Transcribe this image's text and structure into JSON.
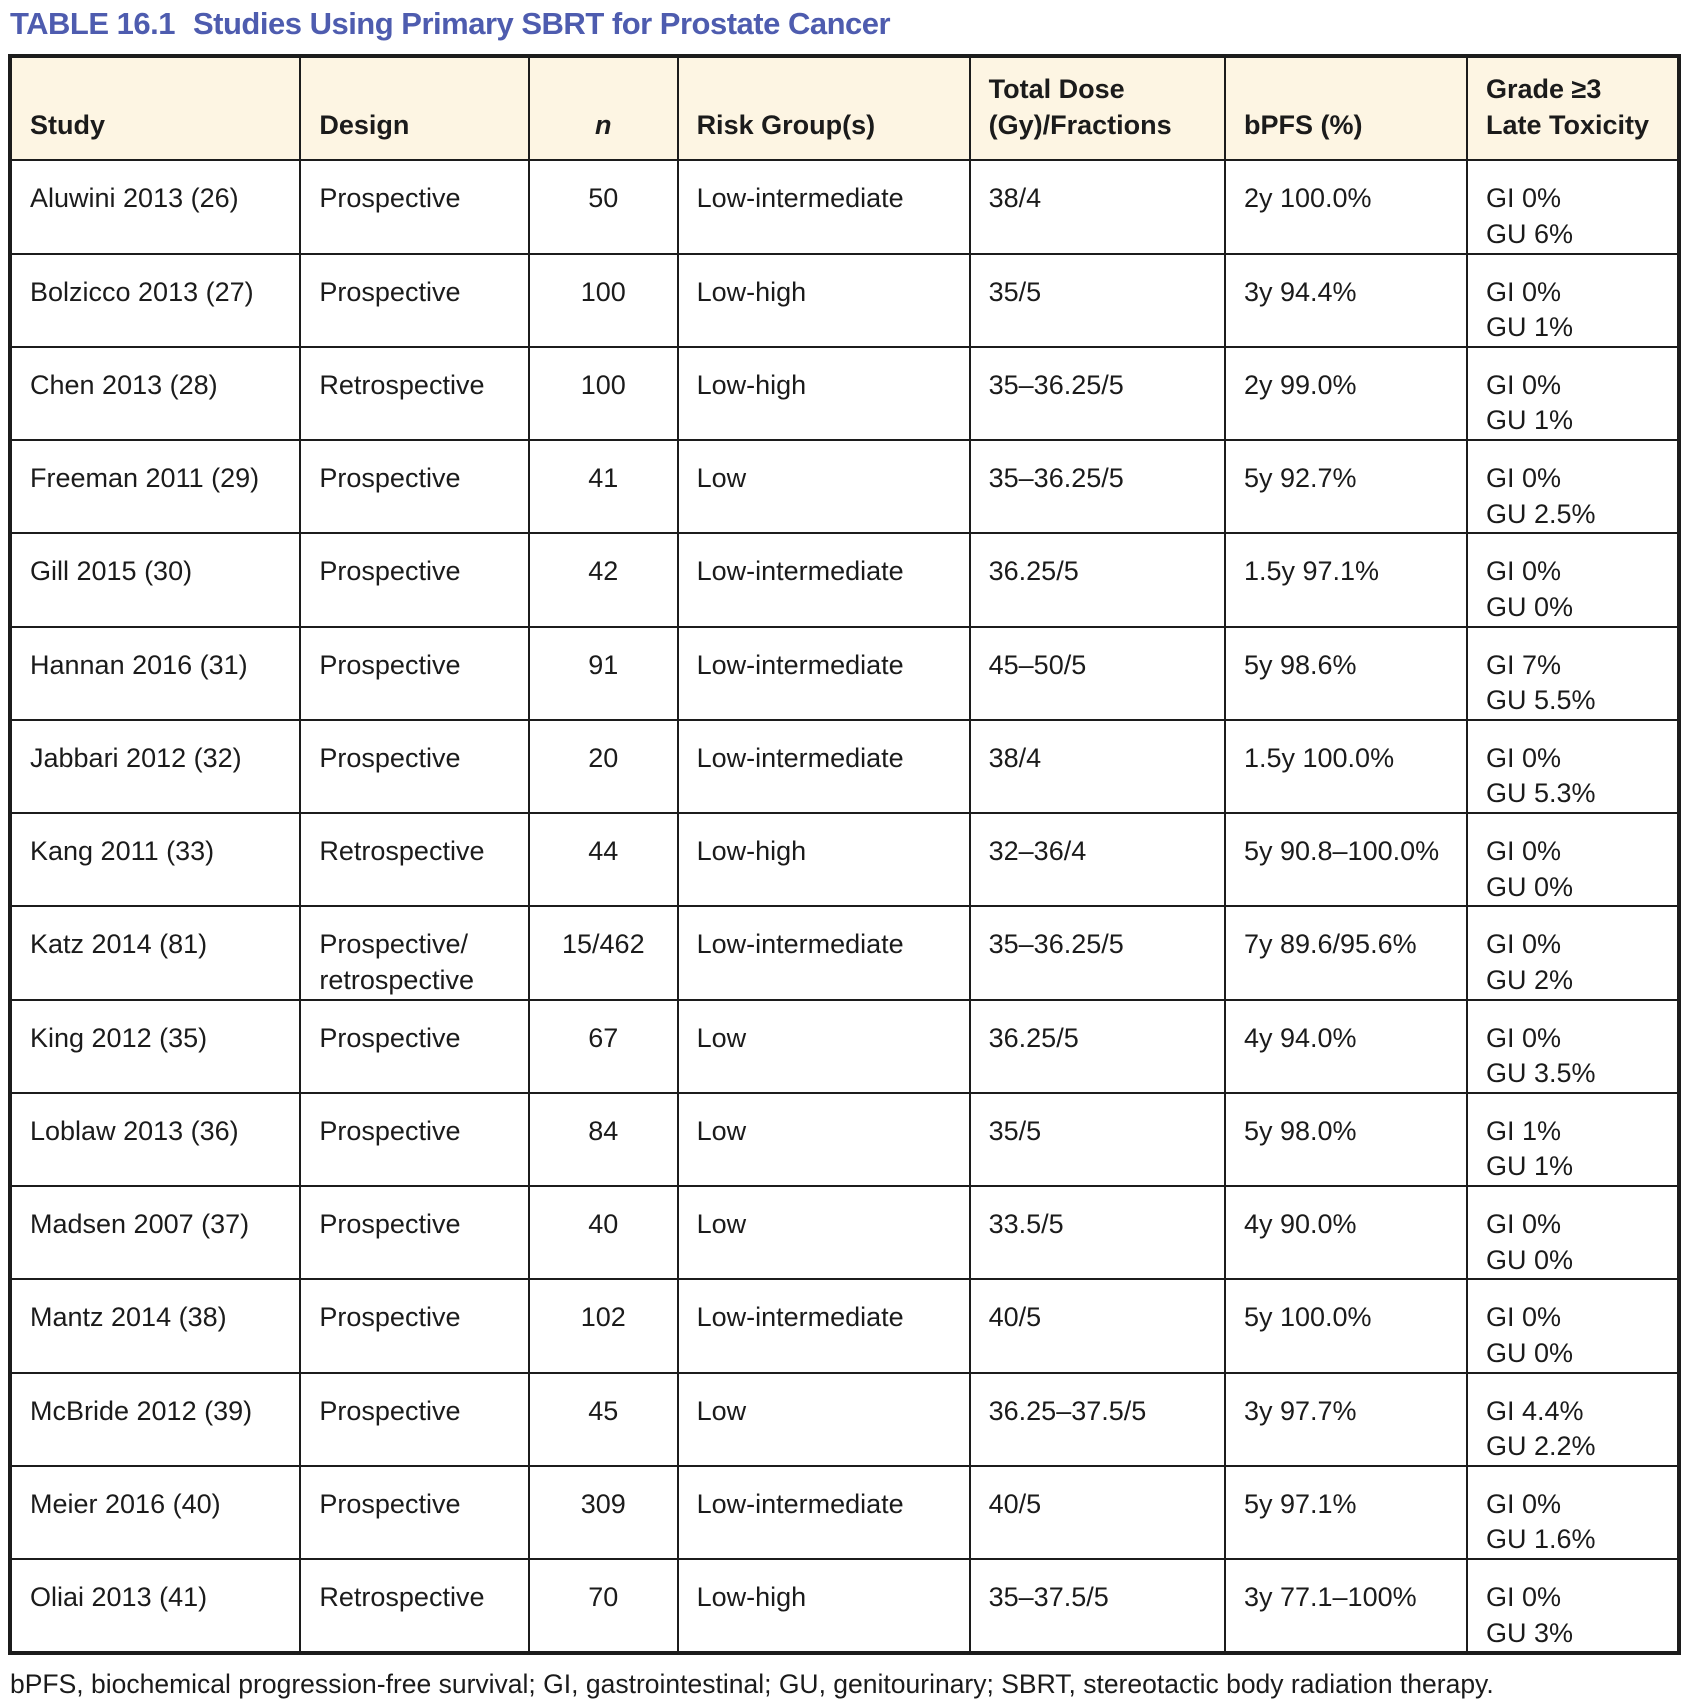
{
  "title": {
    "label": "TABLE 16.1",
    "text": "Studies Using Primary SBRT for Prostate Cancer"
  },
  "table": {
    "columns": [
      "Study",
      "Design",
      "n",
      "Risk Group(s)",
      "Total Dose\n(Gy)/Fractions",
      "bPFS (%)",
      "Grade ≥3\nLate Toxicity"
    ],
    "rows": [
      {
        "study": "Aluwini 2013 (26)",
        "design": "Prospective",
        "n": "50",
        "risk": "Low-intermediate",
        "dose": "38/4",
        "bpfs": "2y 100.0%",
        "toxicity": "GI 0%\nGU 6%"
      },
      {
        "study": "Bolzicco 2013 (27)",
        "design": "Prospective",
        "n": "100",
        "risk": "Low-high",
        "dose": "35/5",
        "bpfs": "3y 94.4%",
        "toxicity": "GI 0%\nGU 1%"
      },
      {
        "study": "Chen 2013 (28)",
        "design": "Retrospective",
        "n": "100",
        "risk": "Low-high",
        "dose": "35–36.25/5",
        "bpfs": "2y 99.0%",
        "toxicity": "GI 0%\nGU 1%"
      },
      {
        "study": "Freeman 2011 (29)",
        "design": "Prospective",
        "n": "41",
        "risk": "Low",
        "dose": "35–36.25/5",
        "bpfs": "5y 92.7%",
        "toxicity": "GI 0%\nGU 2.5%"
      },
      {
        "study": "Gill 2015 (30)",
        "design": "Prospective",
        "n": "42",
        "risk": "Low-intermediate",
        "dose": "36.25/5",
        "bpfs": "1.5y 97.1%",
        "toxicity": "GI 0%\nGU 0%"
      },
      {
        "study": "Hannan 2016 (31)",
        "design": "Prospective",
        "n": "91",
        "risk": "Low-intermediate",
        "dose": "45–50/5",
        "bpfs": "5y 98.6%",
        "toxicity": "GI 7%\nGU 5.5%"
      },
      {
        "study": "Jabbari 2012 (32)",
        "design": "Prospective",
        "n": "20",
        "risk": "Low-intermediate",
        "dose": "38/4",
        "bpfs": "1.5y 100.0%",
        "toxicity": "GI 0%\nGU 5.3%"
      },
      {
        "study": "Kang 2011 (33)",
        "design": "Retrospective",
        "n": "44",
        "risk": "Low-high",
        "dose": "32–36/4",
        "bpfs": "5y 90.8–100.0%",
        "toxicity": "GI 0%\nGU 0%"
      },
      {
        "study": "Katz 2014 (81)",
        "design": "Prospective/\nretrospective",
        "n": "15/462",
        "risk": "Low-intermediate",
        "dose": "35–36.25/5",
        "bpfs": "7y 89.6/95.6%",
        "toxicity": "GI 0%\nGU 2%"
      },
      {
        "study": "King 2012 (35)",
        "design": "Prospective",
        "n": "67",
        "risk": "Low",
        "dose": "36.25/5",
        "bpfs": "4y 94.0%",
        "toxicity": "GI 0%\nGU 3.5%"
      },
      {
        "study": "Loblaw 2013 (36)",
        "design": "Prospective",
        "n": "84",
        "risk": "Low",
        "dose": "35/5",
        "bpfs": "5y 98.0%",
        "toxicity": "GI 1%\nGU 1%"
      },
      {
        "study": "Madsen 2007 (37)",
        "design": "Prospective",
        "n": "40",
        "risk": "Low",
        "dose": "33.5/5",
        "bpfs": "4y 90.0%",
        "toxicity": "GI 0%\nGU 0%"
      },
      {
        "study": "Mantz 2014 (38)",
        "design": "Prospective",
        "n": "102",
        "risk": "Low-intermediate",
        "dose": "40/5",
        "bpfs": "5y 100.0%",
        "toxicity": "GI 0%\nGU 0%"
      },
      {
        "study": "McBride 2012 (39)",
        "design": "Prospective",
        "n": "45",
        "risk": "Low",
        "dose": "36.25–37.5/5",
        "bpfs": "3y 97.7%",
        "toxicity": "GI 4.4%\nGU 2.2%"
      },
      {
        "study": "Meier 2016 (40)",
        "design": "Prospective",
        "n": "309",
        "risk": "Low-intermediate",
        "dose": "40/5",
        "bpfs": "5y 97.1%",
        "toxicity": "GI 0%\nGU 1.6%"
      },
      {
        "study": "Oliai 2013 (41)",
        "design": "Retrospective",
        "n": "70",
        "risk": "Low-high",
        "dose": "35–37.5/5",
        "bpfs": "3y 77.1–100%",
        "toxicity": "GI 0%\nGU 3%"
      }
    ]
  },
  "footnote": "bPFS, biochemical progression-free survival; GI, gastrointestinal; GU, genitourinary; SBRT, stereotactic body radiation therapy.",
  "colors": {
    "title_blue": "#4e5caf",
    "header_background": "#fdf5e3",
    "border": "#1c1c1c",
    "text": "#1b1b1b"
  }
}
